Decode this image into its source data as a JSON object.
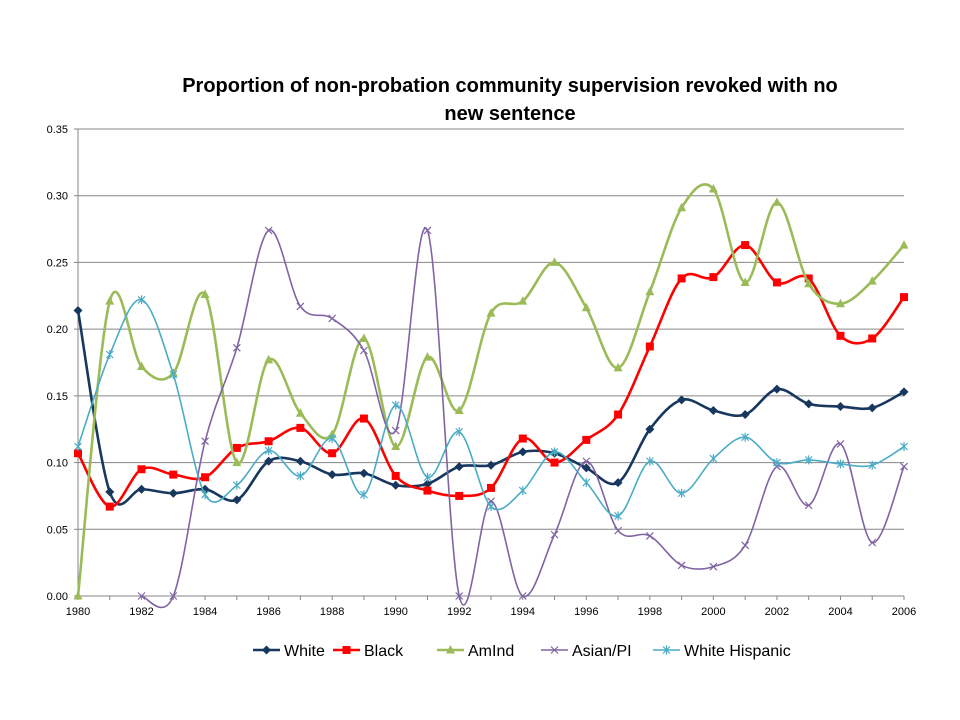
{
  "chart_data": {
    "type": "line",
    "title_lines": [
      "Proportion of non-probation community supervision revoked with no",
      "new sentence"
    ],
    "xlabel": "",
    "ylabel": "",
    "ylim": [
      0,
      0.35
    ],
    "xlim": [
      1980,
      2006
    ],
    "y_ticks": [
      "0.00",
      "0.05",
      "0.10",
      "0.15",
      "0.20",
      "0.25",
      "0.30",
      "0.35"
    ],
    "x_ticks": [
      "1980",
      "1982",
      "1984",
      "1986",
      "1988",
      "1990",
      "1992",
      "1994",
      "1996",
      "1998",
      "2000",
      "2002",
      "2004",
      "2006"
    ],
    "grid": "horizontal",
    "legend_position": "bottom",
    "x": [
      1980,
      1981,
      1982,
      1983,
      1984,
      1985,
      1986,
      1987,
      1988,
      1989,
      1990,
      1991,
      1992,
      1993,
      1994,
      1995,
      1996,
      1997,
      1998,
      1999,
      2000,
      2001,
      2002,
      2003,
      2004,
      2005,
      2006
    ],
    "series": [
      {
        "name": "White",
        "color": "#17375e",
        "marker": "diamond",
        "values": [
          0.214,
          0.078,
          0.08,
          0.077,
          0.08,
          0.072,
          0.101,
          0.101,
          0.091,
          0.092,
          0.083,
          0.084,
          0.097,
          0.098,
          0.108,
          0.107,
          0.096,
          0.085,
          0.125,
          0.147,
          0.139,
          0.136,
          0.155,
          0.144,
          0.142,
          0.141,
          0.153
        ]
      },
      {
        "name": "Black",
        "color": "#ff0000",
        "marker": "square",
        "values": [
          0.107,
          0.067,
          0.095,
          0.091,
          0.089,
          0.111,
          0.116,
          0.126,
          0.107,
          0.133,
          0.09,
          0.079,
          0.075,
          0.081,
          0.118,
          0.1,
          0.117,
          0.136,
          0.187,
          0.238,
          0.239,
          0.263,
          0.235,
          0.238,
          0.195,
          0.193,
          0.224
        ]
      },
      {
        "name": "AmInd",
        "color": "#9bbb59",
        "marker": "triangle",
        "values": [
          0.0,
          0.221,
          0.172,
          0.167,
          0.226,
          0.1,
          0.177,
          0.137,
          0.121,
          0.193,
          0.112,
          0.179,
          0.139,
          0.212,
          0.221,
          0.25,
          0.216,
          0.171,
          0.228,
          0.291,
          0.305,
          0.235,
          0.295,
          0.234,
          0.219,
          0.236,
          0.263
        ]
      },
      {
        "name": "Asian/PI",
        "color": "#8064a2",
        "marker": "x",
        "values": [
          null,
          null,
          0.0,
          0.0,
          0.116,
          0.186,
          0.274,
          0.217,
          0.208,
          0.184,
          0.124,
          0.274,
          0.0,
          0.071,
          0.0,
          0.046,
          0.101,
          0.049,
          0.045,
          0.023,
          0.022,
          0.038,
          0.097,
          0.068,
          0.114,
          0.04,
          0.097
        ]
      },
      {
        "name": "White Hispanic",
        "color": "#4bacc6",
        "marker": "star",
        "values": [
          0.112,
          0.181,
          0.222,
          0.166,
          0.076,
          0.083,
          0.109,
          0.09,
          0.118,
          0.076,
          0.143,
          0.089,
          0.123,
          0.067,
          0.079,
          0.108,
          0.085,
          0.06,
          0.101,
          0.077,
          0.103,
          0.119,
          0.1,
          0.102,
          0.099,
          0.098,
          0.112
        ]
      }
    ]
  }
}
